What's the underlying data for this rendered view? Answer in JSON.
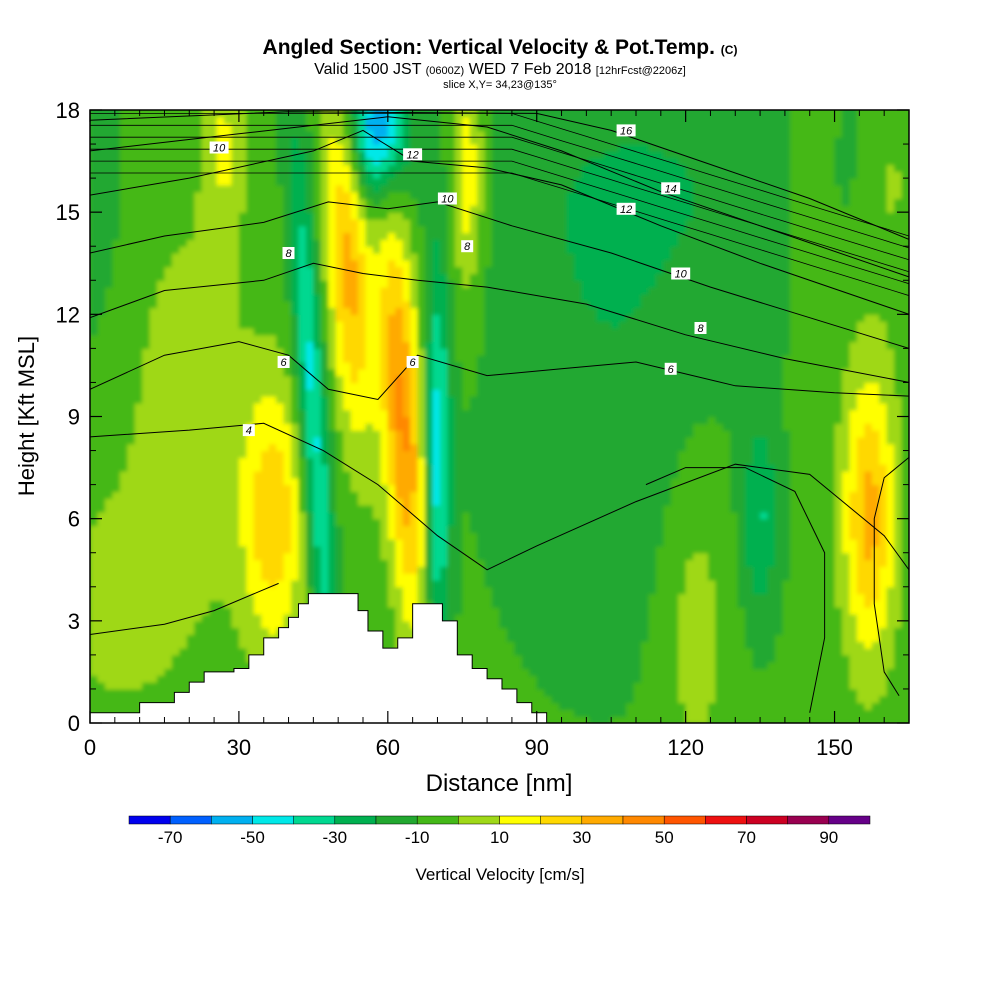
{
  "title": {
    "main": "Angled Section: Vertical Velocity & Pot.Temp.",
    "main_unit": "(C)",
    "valid_prefix": "Valid 1500 JST",
    "valid_utc": "(0600Z)",
    "valid_date": "WED 7 Feb 2018",
    "forecast": "[12hrFcst@2206z]",
    "slice": "slice X,Y= 34,23@135°"
  },
  "chart_data": {
    "type": "heatmap",
    "xlabel": "Distance [nm]",
    "ylabel": "Height [Kft MSL]",
    "xlim": [
      0,
      165
    ],
    "ylim": [
      0,
      18
    ],
    "xticks": [
      0,
      30,
      60,
      90,
      120,
      150
    ],
    "yticks": [
      0,
      3,
      6,
      9,
      12,
      15,
      18
    ],
    "colorbar": {
      "label": "Vertical Velocity [cm/s]",
      "levels": [
        -80,
        -70,
        -60,
        -50,
        -40,
        -30,
        -20,
        -10,
        0,
        10,
        20,
        30,
        40,
        50,
        60,
        70,
        80,
        90,
        100
      ],
      "tick_labels": [
        -70,
        -50,
        -30,
        -10,
        10,
        30,
        50,
        70,
        90
      ],
      "colors": [
        "#0000ee",
        "#0060ff",
        "#00b0f0",
        "#00e8e8",
        "#00d890",
        "#00b050",
        "#22a830",
        "#44b818",
        "#9fd818",
        "#ffff00",
        "#ffd800",
        "#ffaa00",
        "#ff8800",
        "#ff5500",
        "#ee1010",
        "#cc0022",
        "#990050",
        "#660088"
      ]
    },
    "terrain": [
      [
        0,
        0.3
      ],
      [
        10,
        0.6
      ],
      [
        15,
        0.6
      ],
      [
        17,
        0.9
      ],
      [
        20,
        1.2
      ],
      [
        23,
        1.5
      ],
      [
        26,
        1.5
      ],
      [
        29,
        1.6
      ],
      [
        32,
        2.0
      ],
      [
        35,
        2.5
      ],
      [
        38,
        2.8
      ],
      [
        40,
        3.1
      ],
      [
        42,
        3.5
      ],
      [
        44,
        3.8
      ],
      [
        50,
        3.8
      ],
      [
        54,
        3.3
      ],
      [
        56,
        2.7
      ],
      [
        59,
        2.2
      ],
      [
        62,
        2.5
      ],
      [
        65,
        3.5
      ],
      [
        69,
        3.5
      ],
      [
        71,
        3.0
      ],
      [
        74,
        2.0
      ],
      [
        77,
        1.6
      ],
      [
        80,
        1.3
      ],
      [
        83,
        1.0
      ],
      [
        86,
        0.6
      ],
      [
        89,
        0.3
      ],
      [
        92,
        0.3
      ]
    ],
    "isentropes": [
      {
        "label": "4",
        "points": [
          [
            0,
            8.4
          ],
          [
            20,
            8.6
          ],
          [
            35,
            8.8
          ],
          [
            47,
            8.0
          ],
          [
            58,
            7.0
          ],
          [
            70,
            5.5
          ],
          [
            80,
            4.5
          ],
          [
            90,
            5.2
          ],
          [
            110,
            6.5
          ],
          [
            130,
            7.6
          ],
          [
            145,
            7.3
          ],
          [
            160,
            5.5
          ],
          [
            165,
            4.5
          ]
        ]
      },
      {
        "label": "6",
        "points": [
          [
            0,
            9.8
          ],
          [
            15,
            10.8
          ],
          [
            30,
            11.2
          ],
          [
            40,
            10.8
          ],
          [
            48,
            9.8
          ],
          [
            58,
            9.5
          ],
          [
            66,
            10.8
          ],
          [
            80,
            10.2
          ],
          [
            95,
            10.4
          ],
          [
            110,
            10.6
          ],
          [
            130,
            9.9
          ],
          [
            150,
            9.7
          ],
          [
            165,
            9.6
          ]
        ]
      },
      {
        "label": "8",
        "points": [
          [
            0,
            11.9
          ],
          [
            15,
            12.7
          ],
          [
            35,
            13.0
          ],
          [
            45,
            13.5
          ],
          [
            55,
            13.2
          ],
          [
            66,
            13.0
          ],
          [
            80,
            12.8
          ],
          [
            100,
            12.3
          ],
          [
            120,
            11.4
          ],
          [
            140,
            10.7
          ],
          [
            165,
            10.0
          ]
        ]
      },
      {
        "label": "10",
        "points": [
          [
            0,
            13.8
          ],
          [
            15,
            14.3
          ],
          [
            35,
            14.7
          ],
          [
            48,
            15.3
          ],
          [
            60,
            15.1
          ],
          [
            70,
            15.3
          ],
          [
            85,
            14.6
          ],
          [
            105,
            13.8
          ],
          [
            125,
            12.8
          ],
          [
            145,
            11.9
          ],
          [
            165,
            11.0
          ]
        ]
      },
      {
        "label": "12",
        "points": [
          [
            0,
            15.5
          ],
          [
            20,
            16.0
          ],
          [
            45,
            16.8
          ],
          [
            55,
            17.4
          ],
          [
            65,
            16.5
          ],
          [
            80,
            16.3
          ],
          [
            95,
            15.8
          ],
          [
            115,
            14.6
          ],
          [
            135,
            13.5
          ],
          [
            165,
            12.0
          ]
        ]
      },
      {
        "label": "14",
        "points": [
          [
            0,
            16.8
          ],
          [
            30,
            17.3
          ],
          [
            60,
            17.8
          ],
          [
            80,
            17.5
          ],
          [
            95,
            16.8
          ],
          [
            115,
            15.6
          ],
          [
            135,
            14.6
          ],
          [
            165,
            13.1
          ]
        ]
      },
      {
        "label": "16",
        "points": [
          [
            0,
            17.7
          ],
          [
            40,
            17.95
          ],
          [
            90,
            17.9
          ],
          [
            105,
            17.4
          ],
          [
            125,
            16.4
          ],
          [
            145,
            15.4
          ],
          [
            165,
            14.2
          ]
        ]
      }
    ],
    "isentrope_labels": [
      {
        "text": "10",
        "x": 26,
        "y": 16.9
      },
      {
        "text": "12",
        "x": 65,
        "y": 16.7
      },
      {
        "text": "16",
        "x": 108,
        "y": 17.4
      },
      {
        "text": "10",
        "x": 72,
        "y": 15.4
      },
      {
        "text": "14",
        "x": 117,
        "y": 15.7
      },
      {
        "text": "12",
        "x": 108,
        "y": 15.1
      },
      {
        "text": "8",
        "x": 40,
        "y": 13.8
      },
      {
        "text": "8",
        "x": 76,
        "y": 14.0
      },
      {
        "text": "10",
        "x": 119,
        "y": 13.2
      },
      {
        "text": "8",
        "x": 123,
        "y": 11.6
      },
      {
        "text": "6",
        "x": 39,
        "y": 10.6
      },
      {
        "text": "6",
        "x": 65,
        "y": 10.6
      },
      {
        "text": "6",
        "x": 117,
        "y": 10.4
      },
      {
        "text": "4",
        "x": 32,
        "y": 8.6
      }
    ]
  }
}
